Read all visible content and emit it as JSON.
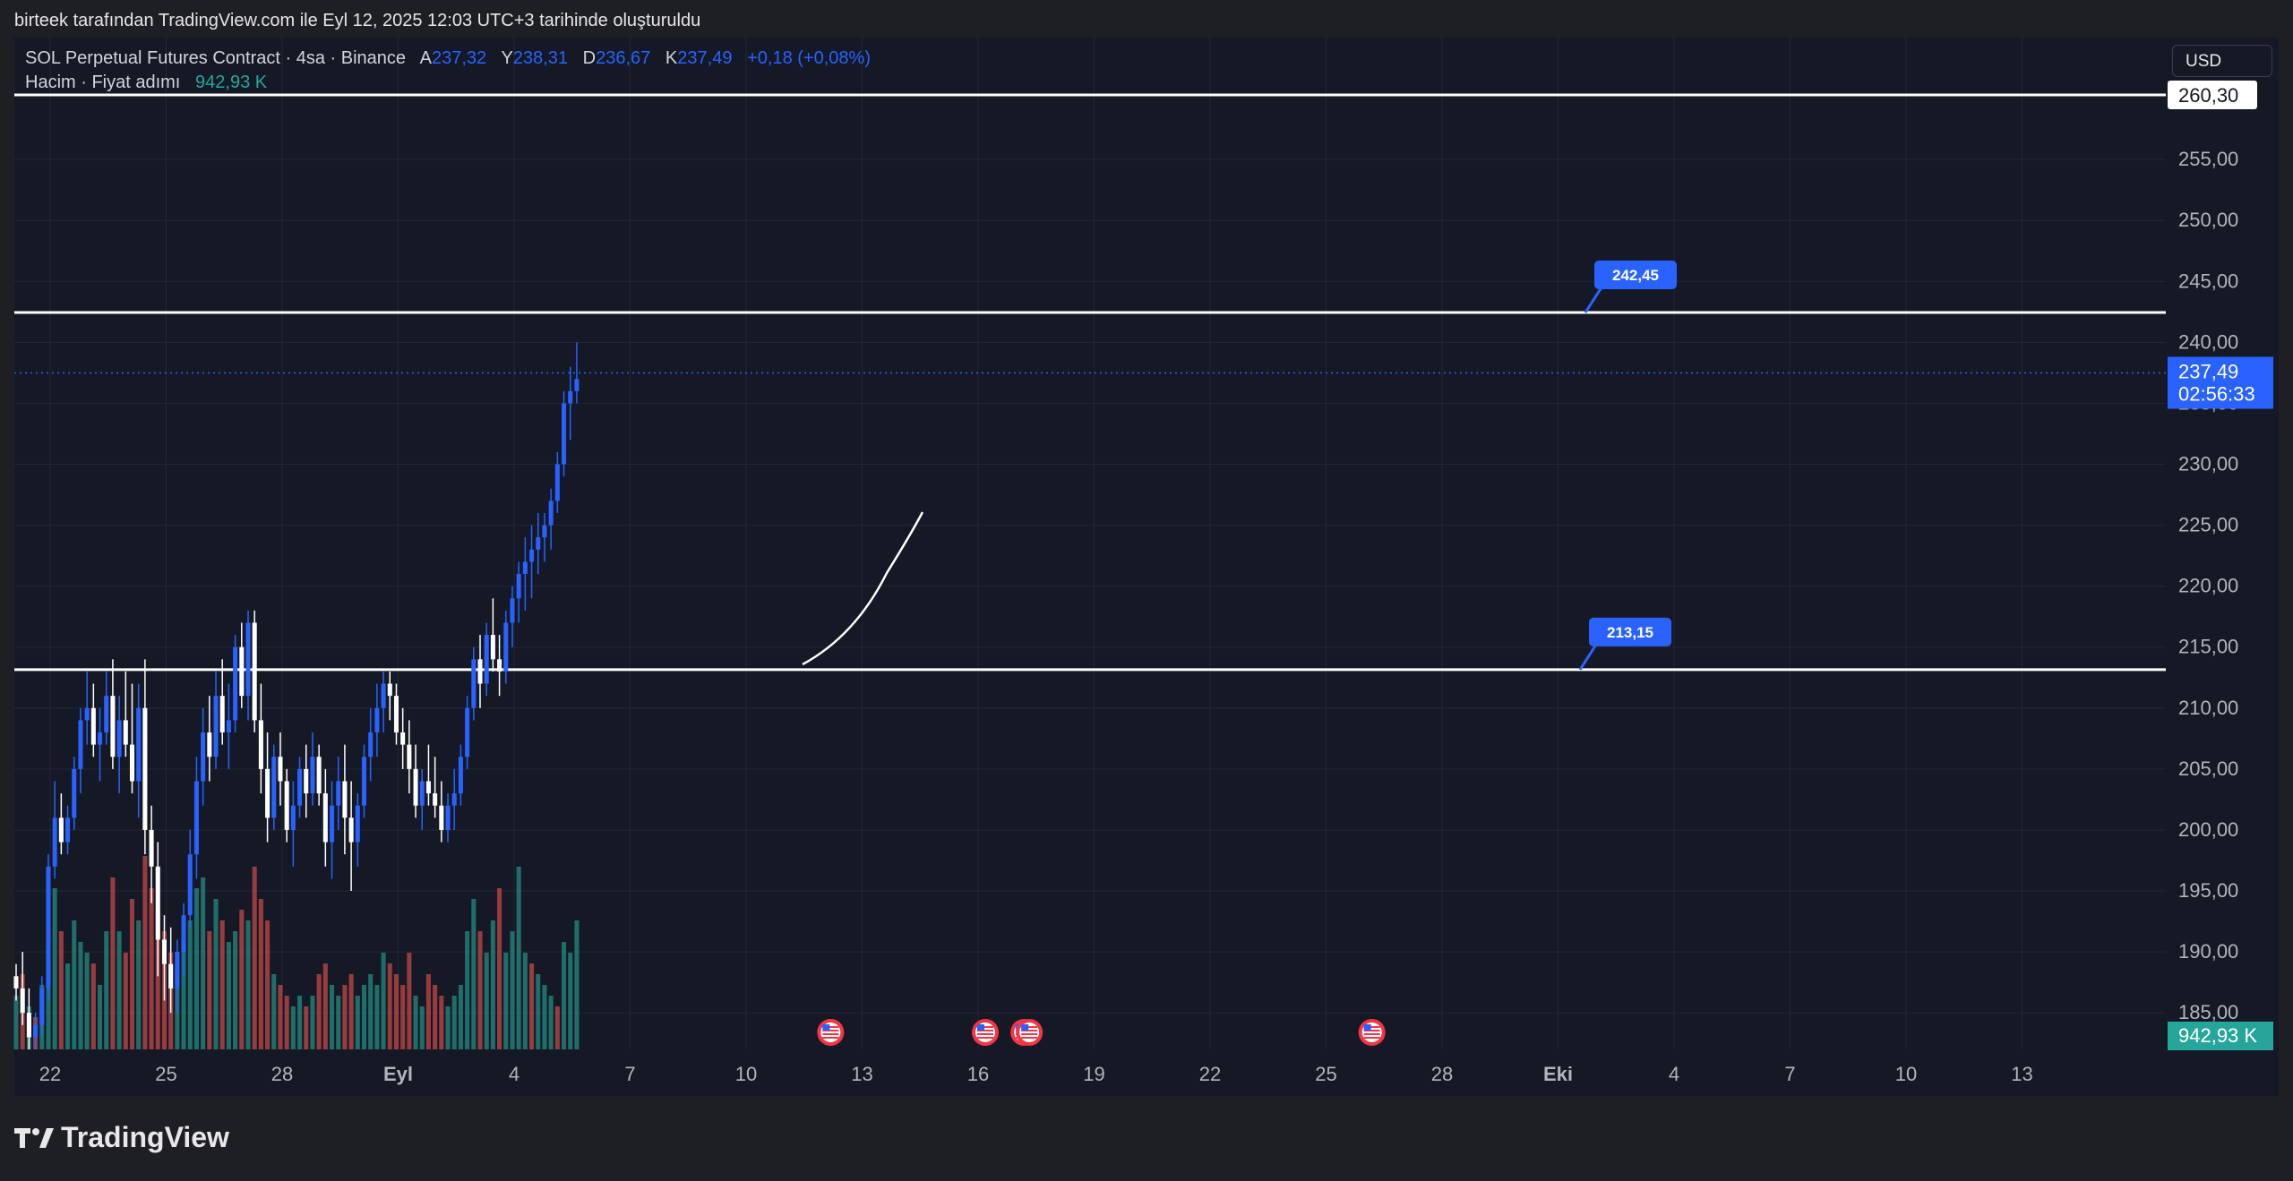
{
  "caption": "birteek tarafından TradingView.com ile Eyl 12, 2025 12:03 UTC+3 tarihinde oluşturuldu",
  "legend": {
    "symbol": "SOL Perpetual Futures Contract · 4sa · Binance",
    "open_label": "A",
    "open": "237,32",
    "high_label": "Y",
    "high": "238,31",
    "low_label": "D",
    "low": "236,67",
    "close_label": "K",
    "close": "237,49",
    "change": "+0,18 (+0,08%)",
    "volume_label": "Hacim · Fiyat adımı",
    "volume_value": "942,93 K"
  },
  "currency": "USD",
  "current_price": {
    "price": "237,49",
    "countdown": "02:56:33"
  },
  "volume_tag": "942,93 K",
  "footer_logo": "TradingView",
  "colors": {
    "up": "#2962ff",
    "down": "#ffffff",
    "vol_up": "#26a69a",
    "vol_down": "#ef5350",
    "background": "#151925",
    "price_tag": "#2962ff"
  },
  "chart_data": {
    "type": "candlestick",
    "price_axis": {
      "ticks": [
        "185,00",
        "190,00",
        "195,00",
        "200,00",
        "205,00",
        "210,00",
        "215,00",
        "220,00",
        "225,00",
        "230,00",
        "235,00",
        "240,00",
        "245,00",
        "250,00",
        "255,00"
      ],
      "min": 182,
      "max": 265
    },
    "time_axis": {
      "ticks": [
        "22",
        "25",
        "28",
        "Eyl",
        "4",
        "7",
        "10",
        "13",
        "16",
        "19",
        "22",
        "25",
        "28",
        "Eki",
        "4",
        "7",
        "10",
        "13"
      ]
    },
    "horizontal_lines": [
      {
        "price": 260.3,
        "label": "260,30"
      },
      {
        "price": 242.45,
        "label": "242,45"
      },
      {
        "price": 213.15,
        "label": "213,15"
      }
    ],
    "current_price_value": 237.49,
    "event_markers": {
      "icon": "us-flag-icon",
      "positions": [
        "12",
        "16",
        "17",
        "17",
        "26"
      ]
    },
    "candles": [
      [
        188,
        189,
        186,
        187
      ],
      [
        187,
        190,
        184,
        185
      ],
      [
        185,
        187,
        182,
        183
      ],
      [
        183,
        185,
        182,
        184
      ],
      [
        184,
        188,
        183,
        187
      ],
      [
        187,
        198,
        186,
        197
      ],
      [
        197,
        204,
        196,
        201
      ],
      [
        201,
        203,
        198,
        199
      ],
      [
        199,
        202,
        198,
        201
      ],
      [
        201,
        206,
        200,
        205
      ],
      [
        205,
        210,
        203,
        209
      ],
      [
        209,
        213,
        207,
        210
      ],
      [
        210,
        212,
        206,
        207
      ],
      [
        207,
        210,
        204,
        208
      ],
      [
        208,
        213,
        207,
        211
      ],
      [
        211,
        214,
        205,
        206
      ],
      [
        206,
        211,
        203,
        209
      ],
      [
        209,
        213,
        206,
        207
      ],
      [
        207,
        212,
        203,
        204
      ],
      [
        204,
        212,
        201,
        210
      ],
      [
        210,
        214,
        198,
        200
      ],
      [
        200,
        202,
        194,
        197
      ],
      [
        197,
        199,
        188,
        191
      ],
      [
        191,
        193,
        186,
        189
      ],
      [
        189,
        192,
        185,
        187
      ],
      [
        187,
        191,
        185,
        190
      ],
      [
        190,
        194,
        188,
        193
      ],
      [
        193,
        200,
        192,
        198
      ],
      [
        198,
        206,
        196,
        204
      ],
      [
        204,
        210,
        202,
        208
      ],
      [
        208,
        211,
        204,
        206
      ],
      [
        206,
        213,
        205,
        211
      ],
      [
        211,
        214,
        207,
        208
      ],
      [
        208,
        212,
        205,
        209
      ],
      [
        209,
        216,
        208,
        215
      ],
      [
        215,
        217,
        210,
        211
      ],
      [
        211,
        218,
        209,
        217
      ],
      [
        217,
        218,
        208,
        209
      ],
      [
        209,
        212,
        203,
        205
      ],
      [
        205,
        208,
        199,
        201
      ],
      [
        201,
        207,
        200,
        206
      ],
      [
        206,
        208,
        202,
        204
      ],
      [
        204,
        205,
        199,
        200
      ],
      [
        200,
        204,
        197,
        202
      ],
      [
        202,
        206,
        201,
        205
      ],
      [
        205,
        207,
        201,
        203
      ],
      [
        203,
        208,
        202,
        206
      ],
      [
        206,
        207,
        202,
        203
      ],
      [
        203,
        205,
        197,
        199
      ],
      [
        199,
        204,
        196,
        202
      ],
      [
        202,
        206,
        200,
        204
      ],
      [
        204,
        207,
        198,
        201
      ],
      [
        201,
        204,
        195,
        199
      ],
      [
        199,
        203,
        197,
        202
      ],
      [
        202,
        207,
        201,
        206
      ],
      [
        206,
        210,
        204,
        208
      ],
      [
        208,
        212,
        206,
        210
      ],
      [
        210,
        213,
        208,
        212
      ],
      [
        212,
        213,
        209,
        211
      ],
      [
        211,
        212,
        207,
        208
      ],
      [
        208,
        210,
        205,
        207
      ],
      [
        207,
        209,
        203,
        205
      ],
      [
        205,
        207,
        201,
        202
      ],
      [
        202,
        205,
        200,
        204
      ],
      [
        204,
        207,
        202,
        203
      ],
      [
        203,
        206,
        201,
        202
      ],
      [
        202,
        204,
        199,
        200
      ],
      [
        200,
        203,
        199,
        202
      ],
      [
        202,
        205,
        200,
        203
      ],
      [
        203,
        207,
        202,
        206
      ],
      [
        206,
        211,
        205,
        210
      ],
      [
        210,
        215,
        209,
        214
      ],
      [
        214,
        216,
        210,
        212
      ],
      [
        212,
        217,
        211,
        216
      ],
      [
        216,
        219,
        213,
        214
      ],
      [
        214,
        216,
        211,
        213
      ],
      [
        213,
        218,
        212,
        217
      ],
      [
        217,
        220,
        215,
        219
      ],
      [
        219,
        222,
        217,
        221
      ],
      [
        221,
        224,
        218,
        222
      ],
      [
        222,
        225,
        219,
        223
      ],
      [
        223,
        226,
        221,
        224
      ],
      [
        224,
        226,
        222,
        225
      ],
      [
        225,
        228,
        223,
        227
      ],
      [
        227,
        231,
        226,
        230
      ],
      [
        230,
        236,
        229,
        235
      ],
      [
        235,
        238,
        232,
        236
      ],
      [
        236,
        240,
        235,
        237
      ]
    ],
    "volumes": [
      [
        0.25,
        "up"
      ],
      [
        0.35,
        "down"
      ],
      [
        0.2,
        "up"
      ],
      [
        0.15,
        "down"
      ],
      [
        0.3,
        "up"
      ],
      [
        0.85,
        "up"
      ],
      [
        0.75,
        "up"
      ],
      [
        0.55,
        "down"
      ],
      [
        0.4,
        "up"
      ],
      [
        0.6,
        "up"
      ],
      [
        0.5,
        "up"
      ],
      [
        0.45,
        "up"
      ],
      [
        0.4,
        "down"
      ],
      [
        0.3,
        "up"
      ],
      [
        0.55,
        "up"
      ],
      [
        0.8,
        "down"
      ],
      [
        0.55,
        "up"
      ],
      [
        0.45,
        "down"
      ],
      [
        0.7,
        "down"
      ],
      [
        0.6,
        "up"
      ],
      [
        0.9,
        "down"
      ],
      [
        0.75,
        "down"
      ],
      [
        0.65,
        "down"
      ],
      [
        0.55,
        "down"
      ],
      [
        0.45,
        "down"
      ],
      [
        0.4,
        "up"
      ],
      [
        0.5,
        "up"
      ],
      [
        0.6,
        "up"
      ],
      [
        0.75,
        "up"
      ],
      [
        0.8,
        "up"
      ],
      [
        0.55,
        "down"
      ],
      [
        0.7,
        "up"
      ],
      [
        0.6,
        "down"
      ],
      [
        0.5,
        "up"
      ],
      [
        0.55,
        "up"
      ],
      [
        0.65,
        "down"
      ],
      [
        0.6,
        "up"
      ],
      [
        0.85,
        "down"
      ],
      [
        0.7,
        "down"
      ],
      [
        0.6,
        "down"
      ],
      [
        0.35,
        "up"
      ],
      [
        0.3,
        "down"
      ],
      [
        0.25,
        "down"
      ],
      [
        0.2,
        "up"
      ],
      [
        0.25,
        "up"
      ],
      [
        0.2,
        "down"
      ],
      [
        0.25,
        "up"
      ],
      [
        0.35,
        "down"
      ],
      [
        0.4,
        "down"
      ],
      [
        0.3,
        "up"
      ],
      [
        0.25,
        "up"
      ],
      [
        0.3,
        "down"
      ],
      [
        0.35,
        "down"
      ],
      [
        0.25,
        "up"
      ],
      [
        0.3,
        "up"
      ],
      [
        0.35,
        "up"
      ],
      [
        0.3,
        "up"
      ],
      [
        0.45,
        "up"
      ],
      [
        0.4,
        "down"
      ],
      [
        0.35,
        "down"
      ],
      [
        0.3,
        "down"
      ],
      [
        0.45,
        "down"
      ],
      [
        0.25,
        "up"
      ],
      [
        0.2,
        "up"
      ],
      [
        0.35,
        "down"
      ],
      [
        0.3,
        "down"
      ],
      [
        0.25,
        "down"
      ],
      [
        0.2,
        "up"
      ],
      [
        0.25,
        "up"
      ],
      [
        0.3,
        "up"
      ],
      [
        0.55,
        "up"
      ],
      [
        0.7,
        "up"
      ],
      [
        0.55,
        "down"
      ],
      [
        0.45,
        "up"
      ],
      [
        0.6,
        "up"
      ],
      [
        0.75,
        "down"
      ],
      [
        0.45,
        "up"
      ],
      [
        0.55,
        "up"
      ],
      [
        0.85,
        "up"
      ],
      [
        0.45,
        "up"
      ],
      [
        0.4,
        "down"
      ],
      [
        0.35,
        "up"
      ],
      [
        0.3,
        "up"
      ],
      [
        0.25,
        "up"
      ],
      [
        0.2,
        "down"
      ],
      [
        0.5,
        "up"
      ],
      [
        0.45,
        "up"
      ],
      [
        0.6,
        "up"
      ]
    ]
  }
}
